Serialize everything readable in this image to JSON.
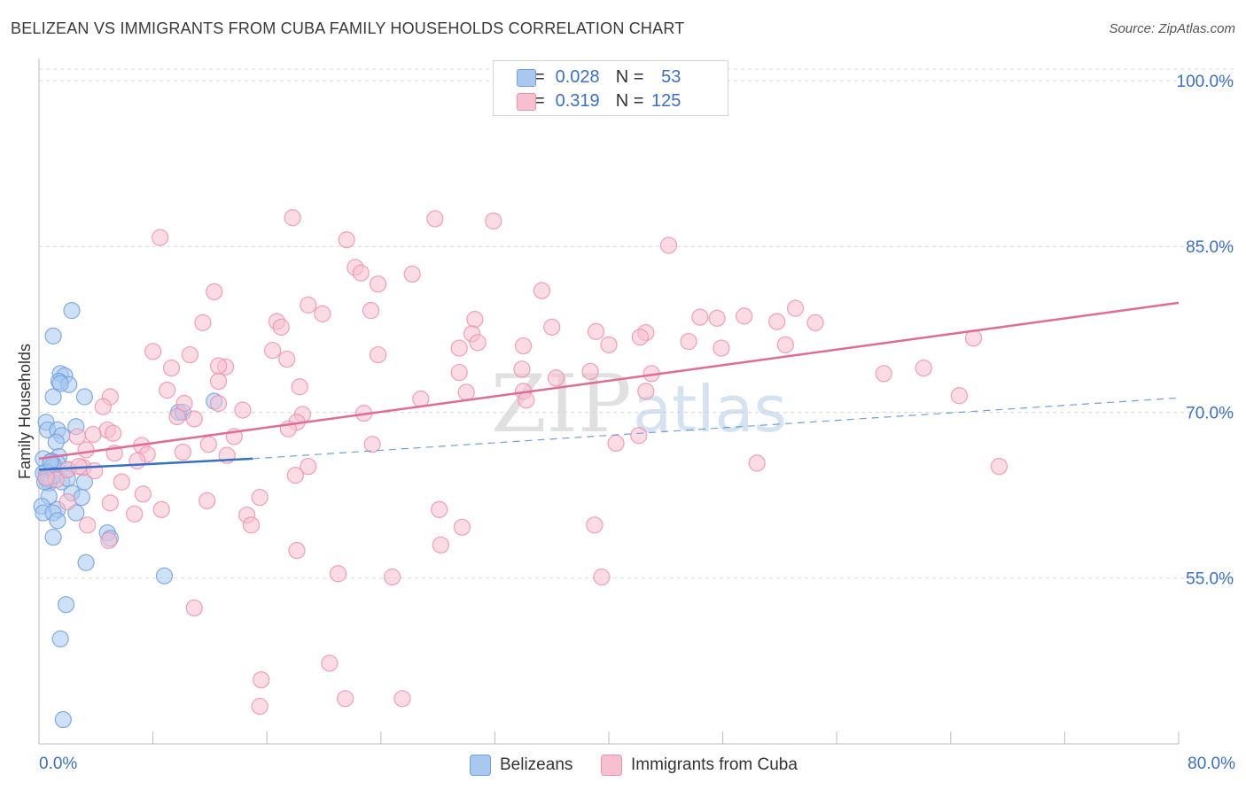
{
  "header": {
    "title": "BELIZEAN VS IMMIGRANTS FROM CUBA FAMILY HOUSEHOLDS CORRELATION CHART",
    "source": "Source: ZipAtlas.com"
  },
  "stats": [
    {
      "r_label": "R =",
      "r_value": "0.028",
      "n_label": "N =",
      "n_value": "53",
      "color": "#a8c8f0",
      "border": "#6f9fe0"
    },
    {
      "r_label": "R =",
      "r_value": "0.319",
      "n_label": "N =",
      "n_value": "125",
      "color": "#f7c0d0",
      "border": "#ee8fac"
    }
  ],
  "watermark": {
    "zip": "ZIP",
    "atlas": "atlas"
  },
  "legend": [
    {
      "label": "Belizeans",
      "color": "#a8c8f0",
      "border": "#6f9fe0"
    },
    {
      "label": "Immigrants from Cuba",
      "color": "#f7c0d0",
      "border": "#ee8fac"
    }
  ],
  "chart_data": {
    "type": "scatter",
    "title": "BELIZEAN VS IMMIGRANTS FROM CUBA FAMILY HOUSEHOLDS CORRELATION CHART",
    "xlabel": "",
    "ylabel": "Family Households",
    "xlim": [
      0,
      80
    ],
    "ylim": [
      40,
      102
    ],
    "x_tick_labels": [
      "0.0%",
      "80.0%"
    ],
    "y_ticks": [
      55,
      70,
      85,
      100
    ],
    "y_tick_labels": [
      "55.0%",
      "70.0%",
      "85.0%",
      "100.0%"
    ],
    "grid": true,
    "series": [
      {
        "name": "Belizeans",
        "color": "#6f9fe0",
        "fill": "#a8c8f0",
        "trend": {
          "x0": 0,
          "y0": 64.8,
          "x1": 15,
          "y1": 65.8,
          "dash_to_x": 80,
          "dash_to_y": 71.3,
          "color": "#3570c8"
        },
        "points": [
          [
            2.3,
            79.2
          ],
          [
            1.0,
            76.9
          ],
          [
            1.5,
            73.5
          ],
          [
            1.8,
            73.3
          ],
          [
            1.4,
            72.8
          ],
          [
            2.1,
            72.5
          ],
          [
            1.5,
            72.6
          ],
          [
            3.2,
            71.4
          ],
          [
            1.0,
            71.4
          ],
          [
            12.3,
            71.0
          ],
          [
            9.8,
            70.0
          ],
          [
            10.1,
            70.0
          ],
          [
            0.5,
            69.1
          ],
          [
            2.6,
            68.7
          ],
          [
            0.6,
            68.4
          ],
          [
            1.3,
            68.4
          ],
          [
            1.6,
            67.9
          ],
          [
            1.2,
            67.3
          ],
          [
            1.4,
            66.0
          ],
          [
            0.3,
            65.8
          ],
          [
            0.9,
            65.6
          ],
          [
            1.3,
            65.4
          ],
          [
            1.0,
            65.2
          ],
          [
            2.0,
            64.8
          ],
          [
            0.5,
            64.6
          ],
          [
            0.3,
            64.5
          ],
          [
            0.5,
            64.0
          ],
          [
            0.8,
            63.9
          ],
          [
            1.6,
            63.7
          ],
          [
            0.6,
            63.9
          ],
          [
            0.7,
            63.6
          ],
          [
            3.2,
            63.7
          ],
          [
            2.3,
            62.7
          ],
          [
            0.7,
            62.4
          ],
          [
            3.0,
            62.3
          ],
          [
            0.2,
            61.5
          ],
          [
            1.3,
            61.2
          ],
          [
            0.3,
            60.9
          ],
          [
            1.0,
            60.9
          ],
          [
            2.6,
            60.9
          ],
          [
            1.3,
            60.2
          ],
          [
            4.8,
            59.1
          ],
          [
            1.0,
            58.7
          ],
          [
            5.0,
            58.6
          ],
          [
            3.3,
            56.4
          ],
          [
            8.8,
            55.2
          ],
          [
            1.9,
            52.6
          ],
          [
            1.5,
            49.5
          ],
          [
            1.7,
            42.2
          ],
          [
            0.8,
            65.5
          ],
          [
            1.1,
            64.3
          ],
          [
            2.0,
            64.0
          ],
          [
            0.4,
            63.7
          ]
        ]
      },
      {
        "name": "Immigrants from Cuba",
        "color": "#ee8fac",
        "fill": "#f7c0d0",
        "trend": {
          "x0": 0,
          "y0": 65.8,
          "x1": 80,
          "y1": 79.9,
          "color": "#e06b95"
        },
        "points": [
          [
            17.8,
            87.6
          ],
          [
            27.8,
            87.5
          ],
          [
            31.9,
            87.3
          ],
          [
            8.5,
            85.8
          ],
          [
            21.6,
            85.6
          ],
          [
            44.2,
            85.1
          ],
          [
            22.2,
            83.1
          ],
          [
            22.6,
            82.6
          ],
          [
            26.2,
            82.5
          ],
          [
            23.8,
            81.6
          ],
          [
            12.3,
            80.9
          ],
          [
            35.3,
            81.0
          ],
          [
            18.9,
            79.7
          ],
          [
            23.3,
            79.2
          ],
          [
            19.9,
            78.9
          ],
          [
            46.4,
            78.6
          ],
          [
            49.5,
            78.7
          ],
          [
            47.6,
            78.5
          ],
          [
            30.6,
            78.4
          ],
          [
            16.7,
            78.2
          ],
          [
            11.5,
            78.1
          ],
          [
            17.0,
            77.7
          ],
          [
            36.0,
            77.7
          ],
          [
            39.1,
            77.3
          ],
          [
            42.6,
            77.2
          ],
          [
            42.2,
            76.8
          ],
          [
            53.1,
            79.4
          ],
          [
            51.8,
            78.2
          ],
          [
            54.5,
            78.1
          ],
          [
            30.4,
            77.1
          ],
          [
            65.6,
            76.7
          ],
          [
            45.6,
            76.4
          ],
          [
            30.8,
            76.3
          ],
          [
            34.0,
            76.0
          ],
          [
            40.0,
            76.1
          ],
          [
            29.5,
            75.8
          ],
          [
            47.9,
            75.8
          ],
          [
            52.4,
            76.1
          ],
          [
            8.0,
            75.5
          ],
          [
            16.4,
            75.6
          ],
          [
            23.8,
            75.2
          ],
          [
            10.6,
            75.2
          ],
          [
            17.4,
            74.8
          ],
          [
            13.1,
            74.1
          ],
          [
            12.6,
            74.2
          ],
          [
            9.3,
            74.0
          ],
          [
            33.9,
            73.9
          ],
          [
            29.5,
            73.6
          ],
          [
            38.7,
            73.7
          ],
          [
            43.0,
            73.5
          ],
          [
            59.3,
            73.5
          ],
          [
            62.1,
            74.0
          ],
          [
            36.3,
            73.1
          ],
          [
            12.6,
            72.8
          ],
          [
            18.3,
            72.3
          ],
          [
            9.0,
            72.0
          ],
          [
            34.0,
            71.9
          ],
          [
            30.0,
            71.8
          ],
          [
            42.6,
            71.9
          ],
          [
            5.0,
            71.4
          ],
          [
            26.8,
            71.2
          ],
          [
            34.2,
            71.1
          ],
          [
            64.6,
            71.5
          ],
          [
            10.2,
            70.8
          ],
          [
            12.6,
            70.8
          ],
          [
            4.5,
            70.5
          ],
          [
            14.3,
            70.2
          ],
          [
            22.8,
            69.9
          ],
          [
            18.5,
            69.8
          ],
          [
            10.9,
            69.4
          ],
          [
            9.7,
            69.6
          ],
          [
            18.1,
            69.1
          ],
          [
            4.8,
            68.4
          ],
          [
            17.5,
            68.5
          ],
          [
            5.2,
            68.1
          ],
          [
            3.8,
            68.0
          ],
          [
            13.7,
            67.8
          ],
          [
            2.7,
            67.8
          ],
          [
            42.1,
            67.9
          ],
          [
            40.5,
            67.2
          ],
          [
            11.9,
            67.1
          ],
          [
            23.4,
            67.1
          ],
          [
            7.2,
            67.0
          ],
          [
            3.3,
            66.6
          ],
          [
            10.1,
            66.4
          ],
          [
            7.6,
            66.2
          ],
          [
            5.3,
            66.3
          ],
          [
            13.2,
            66.1
          ],
          [
            6.9,
            65.6
          ],
          [
            18.9,
            65.1
          ],
          [
            50.4,
            65.4
          ],
          [
            67.4,
            65.1
          ],
          [
            3.1,
            65.0
          ],
          [
            2.0,
            64.8
          ],
          [
            3.9,
            64.7
          ],
          [
            18.0,
            64.3
          ],
          [
            5.8,
            63.7
          ],
          [
            1.2,
            63.9
          ],
          [
            0.5,
            64.1
          ],
          [
            7.3,
            62.6
          ],
          [
            15.5,
            62.3
          ],
          [
            11.8,
            62.0
          ],
          [
            5.0,
            61.8
          ],
          [
            6.7,
            60.8
          ],
          [
            8.6,
            61.2
          ],
          [
            2.0,
            61.9
          ],
          [
            28.1,
            61.2
          ],
          [
            14.6,
            60.7
          ],
          [
            14.9,
            59.8
          ],
          [
            3.4,
            59.8
          ],
          [
            29.7,
            59.6
          ],
          [
            39.0,
            59.8
          ],
          [
            4.9,
            58.4
          ],
          [
            28.2,
            58.0
          ],
          [
            18.1,
            57.5
          ],
          [
            21.0,
            55.4
          ],
          [
            24.8,
            55.1
          ],
          [
            39.5,
            55.1
          ],
          [
            10.9,
            52.3
          ],
          [
            20.4,
            47.3
          ],
          [
            15.6,
            45.8
          ],
          [
            15.5,
            43.4
          ],
          [
            21.5,
            44.1
          ],
          [
            25.5,
            44.1
          ],
          [
            2.8,
            65.1
          ]
        ]
      }
    ]
  }
}
